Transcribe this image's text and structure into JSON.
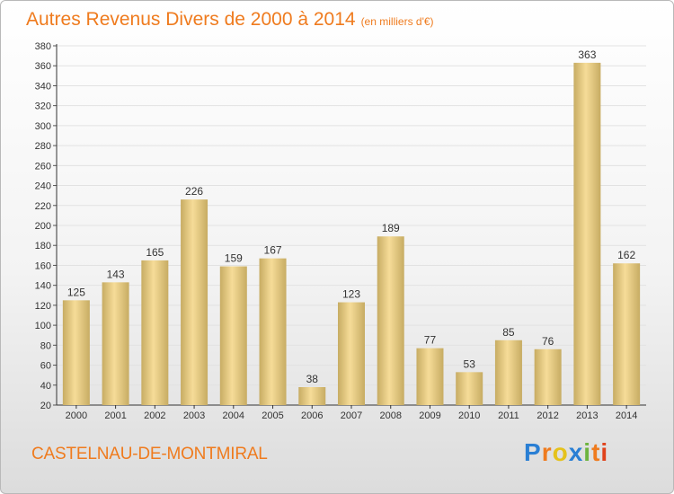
{
  "title": {
    "main": "Autres Revenus Divers de 2000 à 2014",
    "unit": "(en milliers d'€)"
  },
  "location": "CASTELNAU-DE-MONTMIRAL",
  "logo": {
    "text": "Proxiti",
    "letters": [
      {
        "char": "P",
        "color": "#2a7fd4"
      },
      {
        "char": "r",
        "color": "#ef7b1e"
      },
      {
        "char": "o",
        "color": "#e5c21c"
      },
      {
        "char": "x",
        "color": "#2a7fd4"
      },
      {
        "char": "i",
        "color": "#6db33f"
      },
      {
        "char": "t",
        "color": "#ef7b1e"
      },
      {
        "char": "i",
        "color": "#e0421b"
      }
    ]
  },
  "colors": {
    "accent": "#ef7b1e",
    "bar_light": "#f6dc98",
    "bar_dark": "#c7ac63",
    "grid": "#e2e2e2"
  },
  "chart_data": {
    "type": "bar",
    "categories": [
      "2000",
      "2001",
      "2002",
      "2003",
      "2004",
      "2005",
      "2006",
      "2007",
      "2008",
      "2009",
      "2010",
      "2011",
      "2012",
      "2013",
      "2014"
    ],
    "values": [
      125,
      143,
      165,
      226,
      159,
      167,
      38,
      123,
      189,
      77,
      53,
      85,
      76,
      363,
      162
    ],
    "ylim": [
      20,
      380
    ],
    "ytick_step": 20,
    "grid": true,
    "title": "Autres Revenus Divers de 2000 à 2014",
    "xlabel": "",
    "ylabel": ""
  }
}
